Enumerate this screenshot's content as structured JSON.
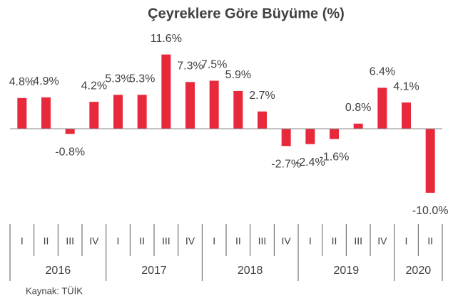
{
  "chart_data": {
    "type": "bar",
    "title": "Çeyreklere Göre Büyüme (%)",
    "categories": [
      "I",
      "II",
      "III",
      "IV",
      "I",
      "II",
      "III",
      "IV",
      "I",
      "II",
      "III",
      "IV",
      "I",
      "II",
      "III",
      "IV",
      "I",
      "II"
    ],
    "groups": [
      "2016",
      "2017",
      "2018",
      "2019",
      "2020"
    ],
    "values": [
      4.8,
      4.9,
      -0.8,
      4.2,
      5.3,
      5.3,
      11.6,
      7.3,
      7.5,
      5.9,
      2.7,
      -2.7,
      -2.4,
      -1.6,
      0.8,
      6.4,
      4.1,
      -10.0
    ],
    "value_labels": [
      "4.8%",
      "4.9%",
      "-0.8%",
      "4.2%",
      "5.3%",
      "5.3%",
      "11.6%",
      "7.3%",
      "7.5%",
      "5.9%",
      "2.7%",
      "-2.7%",
      "-2.4%",
      "-1.6%",
      "0.8%",
      "6.4%",
      "4.1%",
      "-10.0%"
    ],
    "color": "#e8293b",
    "source": "Kaynak: TÜİK"
  }
}
